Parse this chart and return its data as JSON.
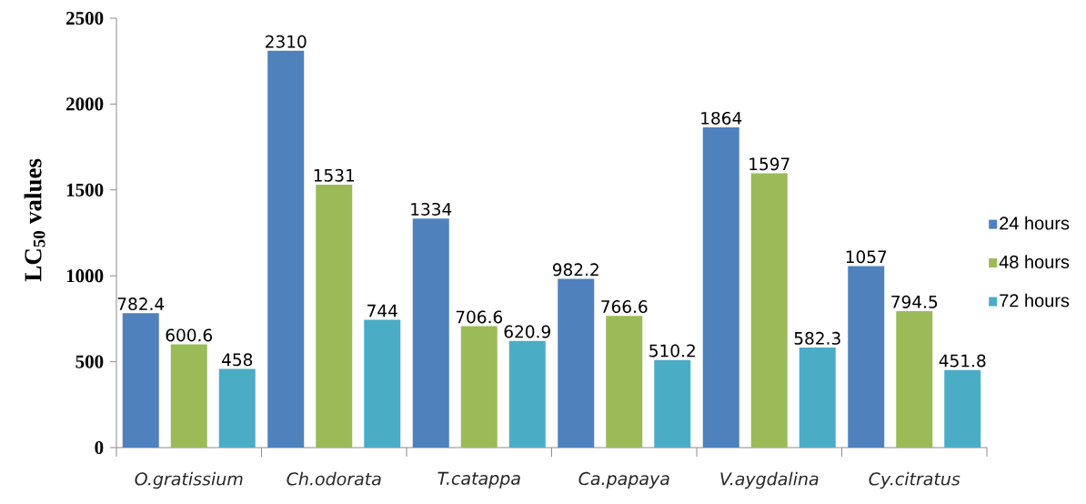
{
  "chart_data": {
    "type": "bar",
    "ylabel": "LC$_{50}$ values",
    "categories": [
      "O.gratissium",
      "Ch.odorata",
      "T.catappa",
      "Ca.papaya",
      "V.aygdalina",
      "Cy.citratus"
    ],
    "series": [
      {
        "name": "24 hours",
        "color": "#4f81bd",
        "values": [
          782.4,
          2310,
          1334,
          982.2,
          1864,
          1057
        ]
      },
      {
        "name": "48 hours",
        "color": "#9bbb59",
        "values": [
          600.6,
          1531,
          706.6,
          766.6,
          1597,
          794.5
        ]
      },
      {
        "name": "72 hours",
        "color": "#4bacc6",
        "values": [
          458,
          744,
          620.9,
          510.2,
          582.3,
          451.8
        ]
      }
    ],
    "ylim": [
      0,
      2500
    ],
    "yticks": [
      0,
      500,
      1000,
      1500,
      2000,
      2500
    ],
    "data_labels": true,
    "legend": "right"
  }
}
